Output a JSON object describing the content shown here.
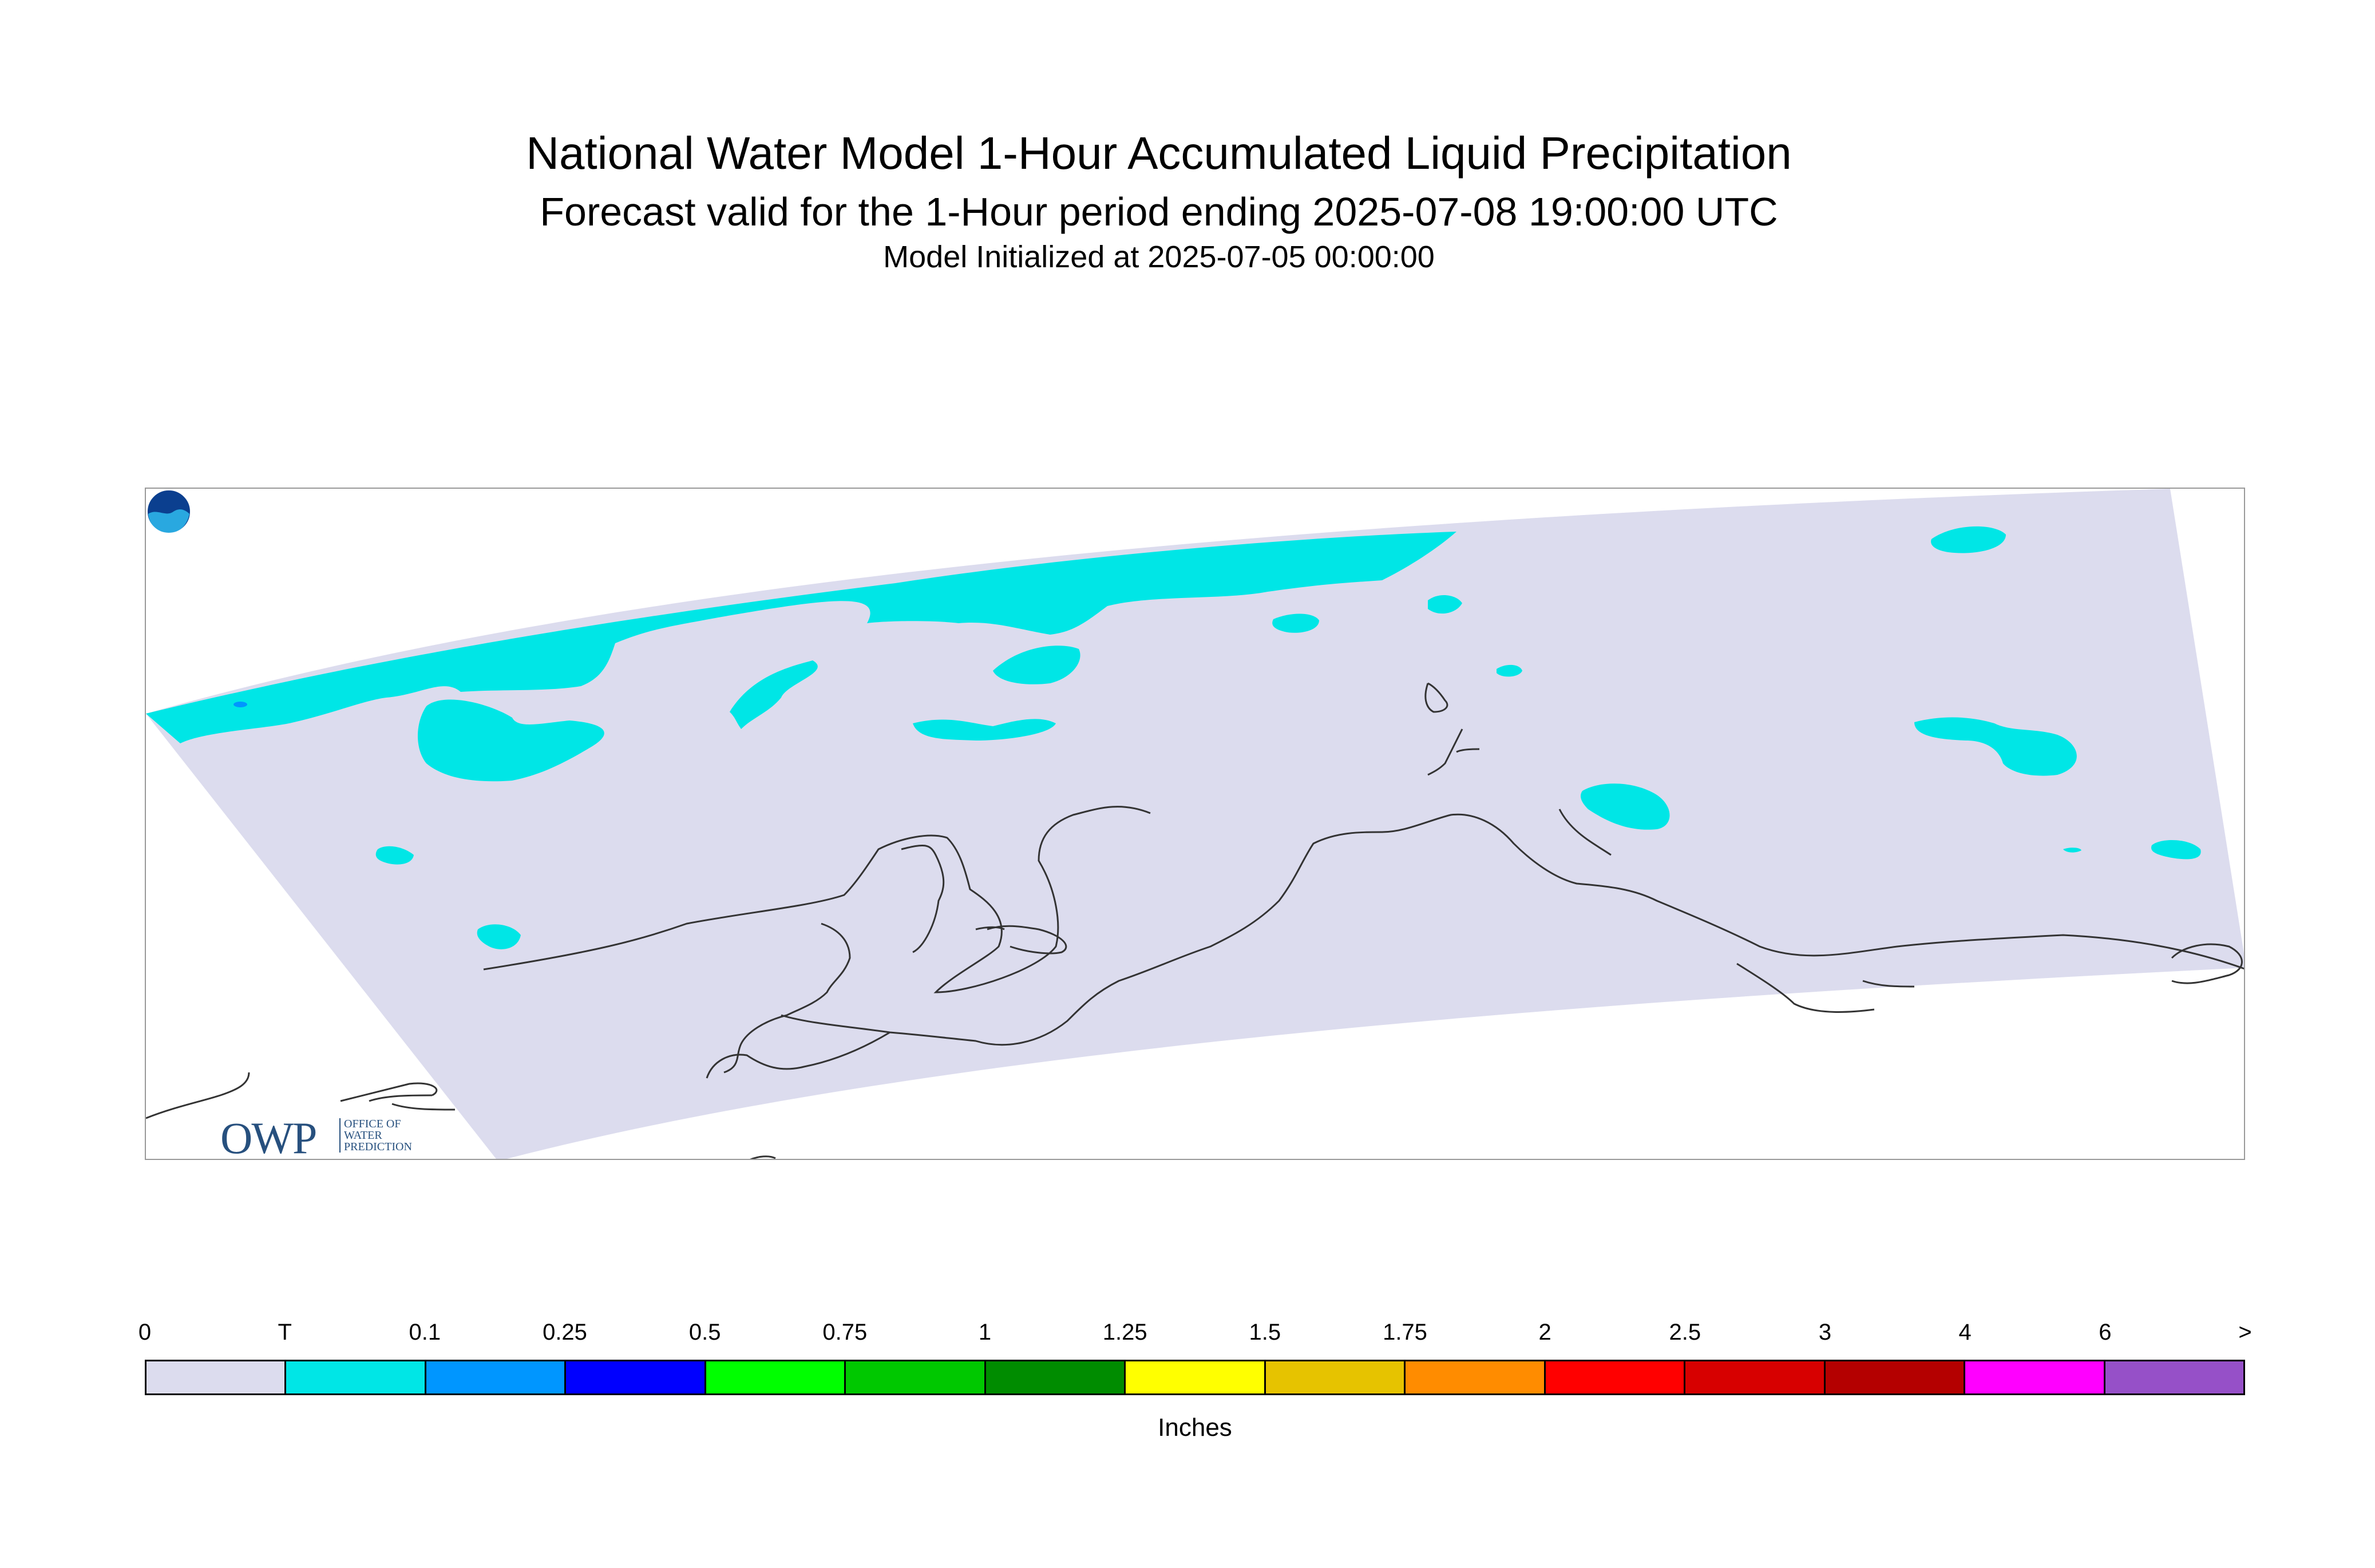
{
  "title": {
    "line1": "National Water Model 1-Hour Accumulated Liquid Precipitation",
    "line2": "Forecast valid for the 1-Hour period ending 2025-07-08 19:00:00 UTC",
    "line3": "Model Initialized at 2025-07-05 00:00:00"
  },
  "map": {
    "domain_fill": "#dcdcee",
    "precip_fill": "#00e6e6",
    "heavy_fill": "#0096ff",
    "coast_color": "#333333",
    "region": "Alaska"
  },
  "logos": {
    "owp_big": "OWP",
    "owp_small": [
      "OFFICE OF",
      "WATER",
      "PREDICTION"
    ],
    "noaa_icon": "noaa-logo-icon"
  },
  "colorbar": {
    "tick_labels": [
      "0",
      "T",
      "0.1",
      "0.25",
      "0.5",
      "0.75",
      "1",
      "1.25",
      "1.5",
      "1.75",
      "2",
      "2.5",
      "3",
      "4",
      "6",
      ">"
    ],
    "colors": [
      "#dcdcee",
      "#00e6e6",
      "#0096ff",
      "#0000ff",
      "#00ff00",
      "#00c800",
      "#008c00",
      "#ffff00",
      "#e6c300",
      "#ff8c00",
      "#ff0000",
      "#d70000",
      "#b40000",
      "#ff00ff",
      "#9650c8"
    ],
    "units": "Inches"
  }
}
